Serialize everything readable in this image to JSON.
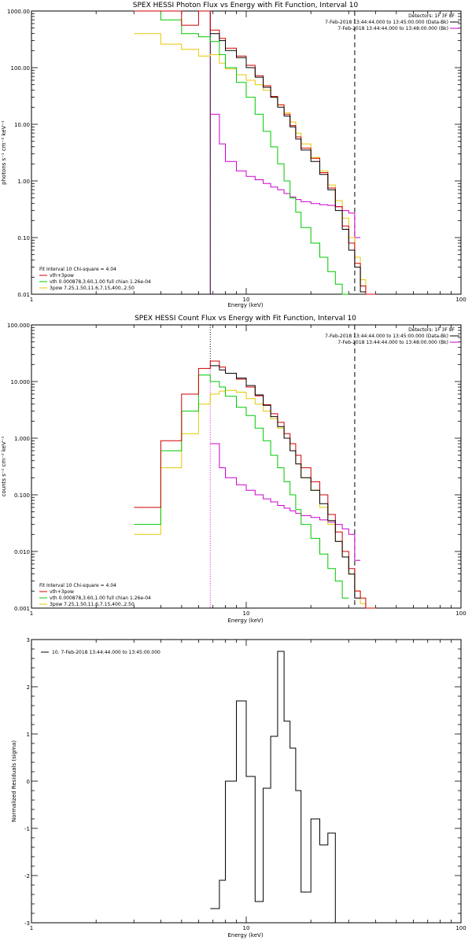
{
  "colors": {
    "data": "#000000",
    "total": "#d00000",
    "vth": "#00c800",
    "bpow": "#e6c800",
    "bk": "#cc00cc"
  },
  "chart_data": [
    {
      "type": "line",
      "title": "SPEX HESSI Photon Flux vs Energy with Fit Function, Interval 10",
      "xlabel": "Energy (keV)",
      "ylabel": "photons s⁻¹ cm⁻² keV⁻¹",
      "xscale": "log",
      "yscale": "log",
      "xlim": [
        1,
        100
      ],
      "ylim": [
        0.01,
        1000
      ],
      "xticks": [
        1,
        10,
        100
      ],
      "xtick_labels": [
        "1",
        "10",
        "100"
      ],
      "yticks": [
        0.01,
        0.1,
        1,
        10,
        100,
        1000
      ],
      "ytick_labels": [
        "0.01",
        "0.10",
        "1.00",
        "10.00",
        "100.00",
        "1000.00"
      ],
      "vlines": [
        {
          "x": 6.8,
          "style": "solid",
          "color": "#000000",
          "y0": 0.01,
          "y1": 1000
        },
        {
          "x": 6.8,
          "style": "dotted",
          "color": "#cc00cc",
          "y0": 0.01,
          "y1": 1000
        },
        {
          "x": 32,
          "style": "dashed",
          "color": "#000000",
          "y0": 0.01,
          "y1": 1000
        }
      ],
      "info": [
        "Detectors: 1F 3F 8F",
        "7-Feb-2018 13:44:44.000 to 13:45:00.000 (Data-Bk)",
        "7-Feb-2018 13:44:44.000 to 13:48:00.000 (Bk)"
      ],
      "fit_legend": [
        "Fit Interval 10   Chi-square = 4.04",
        "vth+3pow",
        "vth 0.000878,3.60,1.00  full chian 1.26e-04",
        "3pow 7.25,1.50,11.6,7.15,400.,2.50"
      ],
      "edges": [
        3,
        4,
        5,
        6,
        6.8,
        7.5,
        8,
        9,
        10,
        11,
        12,
        13,
        14,
        15,
        16,
        17,
        18,
        20,
        22,
        24,
        26,
        28,
        30,
        32,
        34,
        36,
        40
      ],
      "series": [
        {
          "name": "bk",
          "role": "bk",
          "values": [
            null,
            null,
            null,
            null,
            15,
            4.5,
            2.2,
            1.5,
            1.2,
            1.05,
            0.9,
            0.78,
            0.7,
            0.6,
            0.52,
            0.47,
            0.43,
            0.4,
            0.38,
            0.37,
            0.35,
            0.3,
            0.27,
            0.1,
            null,
            null
          ]
        },
        {
          "name": "3pow",
          "role": "bpow",
          "values": [
            400,
            260,
            210,
            160,
            170,
            120,
            95,
            75,
            60,
            50,
            40,
            30,
            22,
            16,
            11,
            7,
            4.5,
            2.6,
            1.5,
            0.85,
            0.45,
            0.22,
            0.1,
            0.045,
            0.018,
            0.01
          ]
        },
        {
          "name": "vth",
          "role": "vth",
          "values": [
            1000,
            700,
            400,
            350,
            290,
            170,
            100,
            55,
            30,
            15,
            7.5,
            4,
            2,
            1,
            0.5,
            0.28,
            0.15,
            0.08,
            0.045,
            0.025,
            0.015,
            0.01,
            null,
            null,
            null,
            null
          ]
        },
        {
          "name": "vth+3pow",
          "role": "total",
          "values": [
            1000,
            1000,
            560,
            1000,
            460,
            330,
            220,
            160,
            110,
            72,
            48,
            31,
            22,
            15,
            9.5,
            6,
            3.8,
            2.5,
            1.4,
            0.75,
            0.35,
            0.16,
            0.08,
            0.035,
            0.014,
            0.01
          ]
        },
        {
          "name": "data-bk",
          "role": "data",
          "values": [
            null,
            null,
            null,
            null,
            400,
            300,
            200,
            150,
            100,
            68,
            45,
            30,
            20,
            14,
            9,
            5.5,
            3.5,
            2.2,
            1.3,
            0.7,
            0.3,
            0.14,
            0.06,
            0.03,
            0.011,
            null
          ]
        }
      ]
    },
    {
      "type": "line",
      "title": "SPEX HESSI Count Flux vs Energy with Fit Function, Interval 10",
      "xlabel": "Energy (keV)",
      "ylabel": "counts s⁻¹ cm⁻² keV⁻¹",
      "xscale": "log",
      "yscale": "log",
      "xlim": [
        1,
        100
      ],
      "ylim": [
        0.001,
        100
      ],
      "xticks": [
        1,
        10,
        100
      ],
      "xtick_labels": [
        "1",
        "10",
        "100"
      ],
      "yticks": [
        0.001,
        0.01,
        0.1,
        1,
        10,
        100
      ],
      "ytick_labels": [
        "0.001",
        "0.010",
        "0.100",
        "1.000",
        "10.000",
        "100.000"
      ],
      "vlines": [
        {
          "x": 6.8,
          "style": "dotted",
          "color": "#000000",
          "y0": 17,
          "y1": 100
        },
        {
          "x": 6.8,
          "style": "dotted",
          "color": "#cc00cc",
          "y0": 0.001,
          "y1": 17
        },
        {
          "x": 32,
          "style": "dashed",
          "color": "#000000",
          "y0": 0.001,
          "y1": 100
        }
      ],
      "info": [
        "Detectors: 1F 3F 8F",
        "7-Feb-2018 13:44:44.000 to 13:45:00.000 (Data-Bk)",
        "7-Feb-2018 13:44:44.000 to 13:48:00.000 (Bk)"
      ],
      "fit_legend": [
        "Fit Interval 10   Chi-square = 4.04",
        "vth+3pow",
        "vth 0.000878,3.60,1.00  full chian 1.26e-04",
        "3pow 7.25,1.50,11.6,7.15,400.,2.50"
      ],
      "edges": [
        3,
        4,
        5,
        6,
        6.8,
        7.5,
        8,
        9,
        10,
        11,
        12,
        13,
        14,
        15,
        16,
        17,
        18,
        20,
        22,
        24,
        26,
        28,
        30,
        32,
        34,
        36,
        40
      ],
      "series": [
        {
          "name": "bk",
          "role": "bk",
          "values": [
            null,
            null,
            null,
            null,
            0.8,
            0.3,
            0.2,
            0.15,
            0.12,
            0.1,
            0.085,
            0.075,
            0.065,
            0.058,
            0.052,
            0.047,
            0.043,
            0.04,
            0.036,
            0.033,
            0.03,
            0.025,
            0.02,
            0.007,
            null,
            null
          ]
        },
        {
          "name": "3pow",
          "role": "bpow",
          "values": [
            0.02,
            0.3,
            1.2,
            4,
            6,
            6.8,
            7,
            6.5,
            5,
            4,
            3,
            2.2,
            1.5,
            1,
            0.6,
            0.35,
            0.2,
            0.12,
            0.06,
            0.03,
            0.015,
            0.008,
            0.004,
            0.002,
            0.0012,
            0.001
          ]
        },
        {
          "name": "vth",
          "role": "vth",
          "values": [
            0.03,
            0.6,
            3,
            13,
            10,
            8,
            5.5,
            3.5,
            2.5,
            1.5,
            0.9,
            0.5,
            0.3,
            0.17,
            0.1,
            0.055,
            0.03,
            0.017,
            0.009,
            0.005,
            0.003,
            0.0015,
            null,
            null,
            null,
            null
          ]
        },
        {
          "name": "vth+3pow",
          "role": "total",
          "values": [
            0.06,
            0.9,
            6,
            17,
            23,
            18,
            14,
            11,
            8,
            5.6,
            3.9,
            2.7,
            1.9,
            1.2,
            0.8,
            0.5,
            0.3,
            0.17,
            0.1,
            0.045,
            0.022,
            0.01,
            0.005,
            0.002,
            0.0015,
            0.001
          ]
        },
        {
          "name": "data-bk",
          "role": "data",
          "values": [
            null,
            null,
            null,
            null,
            19,
            16,
            14,
            11.5,
            8.5,
            5.8,
            3.8,
            2.4,
            1.6,
            1,
            0.6,
            0.35,
            0.2,
            0.12,
            0.07,
            0.035,
            0.015,
            0.008,
            0.004,
            0.0015,
            null,
            null
          ]
        }
      ]
    },
    {
      "type": "line",
      "title": "",
      "xlabel": "Energy (keV)",
      "ylabel": "Normalized Residuals (sigma)",
      "xscale": "log",
      "yscale": "linear",
      "xlim": [
        1,
        100
      ],
      "ylim": [
        -3,
        3
      ],
      "xticks": [
        1,
        10,
        100
      ],
      "xtick_labels": [
        "1",
        "10",
        "100"
      ],
      "yticks": [
        -3,
        -2,
        -1,
        0,
        1,
        2,
        3
      ],
      "ytick_labels": [
        "-3",
        "-2",
        "-1",
        "0",
        "1",
        "2",
        "3"
      ],
      "legend": "10. 7-Feb-2018 13:44:44.000 to 13:45:00.000",
      "edges": [
        6.8,
        7.5,
        8,
        9,
        10,
        11,
        12,
        13,
        14,
        15,
        16,
        17,
        18,
        20,
        22,
        24,
        26,
        28,
        30,
        32
      ],
      "series": [
        {
          "name": "residuals",
          "role": "data",
          "values": [
            -2.7,
            -2.1,
            0,
            1.7,
            0.1,
            -2.55,
            -0.15,
            0.95,
            2.75,
            1.27,
            0.7,
            -0.2,
            -2.35,
            -0.8,
            -1.35,
            -1.1,
            -3,
            -3,
            -3
          ]
        }
      ]
    }
  ]
}
